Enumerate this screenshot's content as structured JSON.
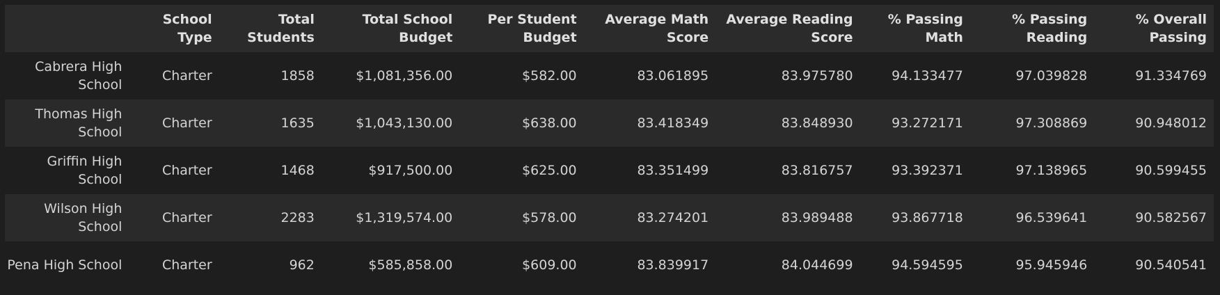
{
  "table": {
    "columns": [
      "",
      "School Type",
      "Total Students",
      "Total School Budget",
      "Per Student Budget",
      "Average Math Score",
      "Average Reading Score",
      "% Passing Math",
      "% Passing Reading",
      "% Overall Passing"
    ],
    "rows": [
      [
        "Cabrera High School",
        "Charter",
        "1858",
        "$1,081,356.00",
        "$582.00",
        "83.061895",
        "83.975780",
        "94.133477",
        "97.039828",
        "91.334769"
      ],
      [
        "Thomas High School",
        "Charter",
        "1635",
        "$1,043,130.00",
        "$638.00",
        "83.418349",
        "83.848930",
        "93.272171",
        "97.308869",
        "90.948012"
      ],
      [
        "Griffin High School",
        "Charter",
        "1468",
        "$917,500.00",
        "$625.00",
        "83.351499",
        "83.816757",
        "93.392371",
        "97.138965",
        "90.599455"
      ],
      [
        "Wilson High School",
        "Charter",
        "2283",
        "$1,319,574.00",
        "$578.00",
        "83.274201",
        "83.989488",
        "93.867718",
        "96.539641",
        "90.582567"
      ],
      [
        "Pena High School",
        "Charter",
        "962",
        "$585,858.00",
        "$609.00",
        "83.839917",
        "84.044699",
        "94.594595",
        "95.945946",
        "90.540541"
      ]
    ]
  }
}
